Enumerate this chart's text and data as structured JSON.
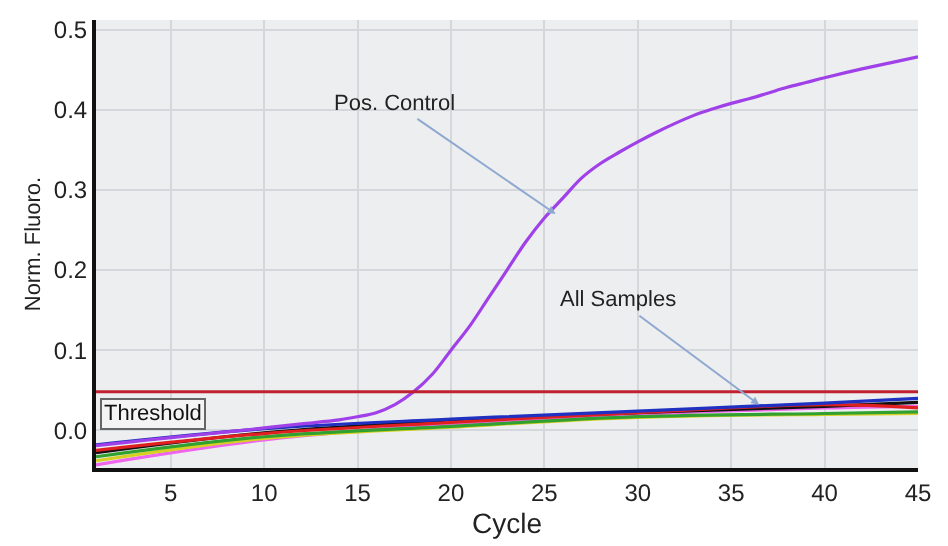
{
  "chart_data": {
    "type": "line",
    "xlabel": "Cycle",
    "ylabel": "Norm. Fluoro.",
    "xlim": [
      1,
      45
    ],
    "ylim": [
      -0.047,
      0.512
    ],
    "xticks": [
      5,
      10,
      15,
      20,
      25,
      30,
      35,
      40,
      45
    ],
    "yticks": [
      {
        "value": 0,
        "label": "0.0"
      },
      0.1,
      0.2,
      0.3,
      0.4,
      0.5
    ],
    "grid": true,
    "marker": "none",
    "line_style": "solid",
    "series": [
      {
        "color": "#ee66ee",
        "x": [
          1,
          10,
          20,
          30,
          40,
          45
        ],
        "values": [
          -0.043,
          -0.012,
          0.008,
          0.02,
          0.028,
          0.03
        ]
      },
      {
        "color": "#d8d020",
        "x": [
          1,
          10,
          20,
          30,
          40,
          45
        ],
        "values": [
          -0.038,
          -0.01,
          0.004,
          0.016,
          0.02,
          0.021
        ]
      },
      {
        "color": "#30a030",
        "x": [
          1,
          10,
          20,
          30,
          40,
          45
        ],
        "values": [
          -0.033,
          -0.008,
          0.005,
          0.017,
          0.021,
          0.023
        ]
      },
      {
        "color": "#111111",
        "x": [
          1,
          10,
          20,
          30,
          40,
          45
        ],
        "values": [
          -0.028,
          -0.003,
          0.012,
          0.022,
          0.03,
          0.035
        ]
      },
      {
        "color": "#e02020",
        "x": [
          1,
          10,
          20,
          30,
          40,
          45
        ],
        "values": [
          -0.025,
          -0.004,
          0.01,
          0.022,
          0.032,
          0.028
        ]
      },
      {
        "color": "#2030c0",
        "x": [
          1,
          10,
          20,
          30,
          40,
          45
        ],
        "values": [
          -0.018,
          0.002,
          0.014,
          0.024,
          0.034,
          0.04
        ]
      },
      {
        "color": "#a040e8",
        "x": [
          1,
          3,
          5,
          8,
          10,
          12,
          14,
          15,
          16,
          17,
          18,
          19,
          20,
          21,
          22,
          23,
          24,
          25,
          26,
          27,
          28,
          29,
          30,
          31,
          32,
          33,
          34,
          35,
          36,
          37,
          38,
          39,
          40,
          42,
          44,
          45
        ],
        "values": [
          -0.019,
          -0.014,
          -0.009,
          -0.002,
          0.003,
          0.008,
          0.013,
          0.017,
          0.022,
          0.032,
          0.048,
          0.07,
          0.1,
          0.13,
          0.165,
          0.2,
          0.235,
          0.265,
          0.29,
          0.315,
          0.333,
          0.347,
          0.36,
          0.372,
          0.383,
          0.393,
          0.401,
          0.408,
          0.414,
          0.421,
          0.428,
          0.434,
          0.44,
          0.451,
          0.461,
          0.466
        ]
      }
    ],
    "ref_lines": [
      {
        "axis": "y",
        "value": 0.048,
        "label": "Threshold",
        "color": "#c02030"
      }
    ],
    "annotations": [
      {
        "text": "Pos. Control",
        "x": 25.6,
        "y": 0.27
      },
      {
        "text": "All Samples",
        "x": 36.5,
        "y": 0.032
      }
    ]
  }
}
